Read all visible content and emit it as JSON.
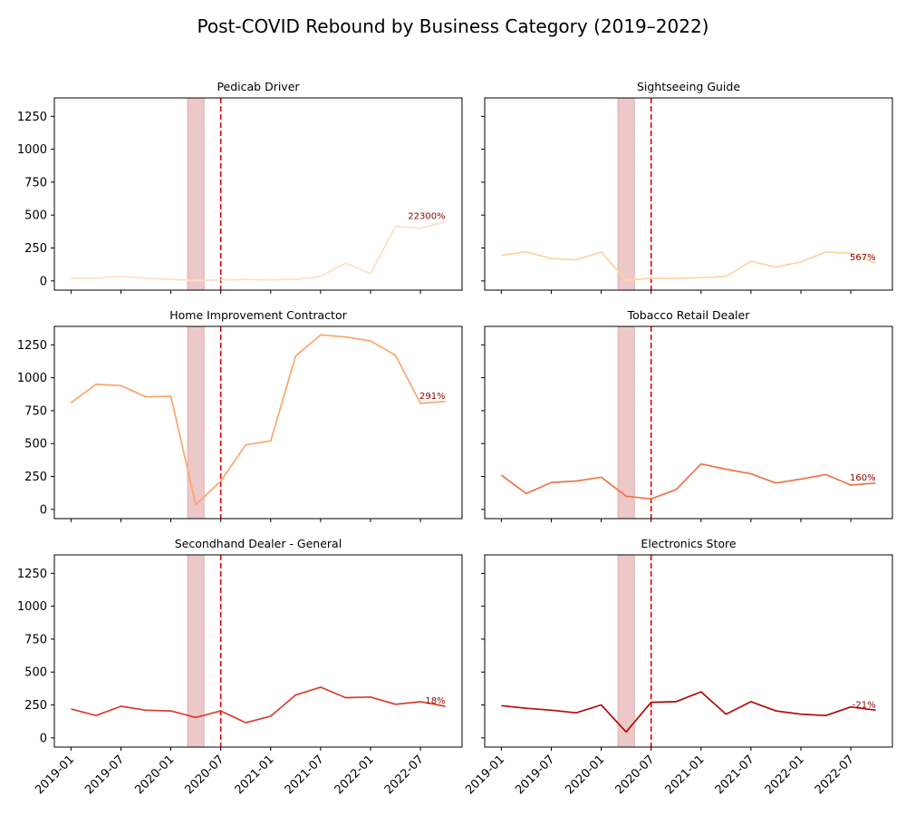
{
  "chart_data": {
    "type": "line",
    "title": "Post-COVID Rebound by Business Category (2019–2022)",
    "x_ticks": [
      "2019-01",
      "2019-07",
      "2020-01",
      "2020-07",
      "2021-01",
      "2021-07",
      "2022-01",
      "2022-07"
    ],
    "y_ticks": [
      0,
      250,
      500,
      750,
      1000,
      1250
    ],
    "ylim": [
      -70,
      1390
    ],
    "xlim": [
      "2018-11",
      "2022-12"
    ],
    "shared_y": true,
    "x": [
      "2019-01",
      "2019-04",
      "2019-07",
      "2019-10",
      "2020-01",
      "2020-04",
      "2020-07",
      "2020-10",
      "2021-01",
      "2021-04",
      "2021-07",
      "2021-10",
      "2022-01",
      "2022-04",
      "2022-07",
      "2022-10"
    ],
    "lockdown_span": [
      "2020-03",
      "2020-05"
    ],
    "reopen_line": "2020-07",
    "panels": [
      {
        "title": "Pedicab Driver",
        "color": "#fde0c5",
        "x": [
          "2019-01",
          "2019-04",
          "2019-07",
          "2019-10",
          "2020-01",
          "2020-04",
          "2020-07",
          "2020-10",
          "2021-01",
          "2021-04",
          "2021-07",
          "2021-10",
          "2022-01",
          "2022-04",
          "2022-07",
          "2022-10"
        ],
        "values": [
          20,
          20,
          35,
          20,
          12,
          2,
          8,
          10,
          8,
          12,
          35,
          135,
          55,
          415,
          400,
          450
        ],
        "annotation": "22300%"
      },
      {
        "title": "Sightseeing Guide",
        "color": "#fdd3a0",
        "x": [
          "2019-01",
          "2019-04",
          "2019-07",
          "2019-10",
          "2020-01",
          "2020-04",
          "2020-07",
          "2020-10",
          "2021-01",
          "2021-04",
          "2021-07",
          "2021-10",
          "2022-01",
          "2022-04",
          "2022-07",
          "2022-10"
        ],
        "values": [
          195,
          220,
          170,
          160,
          220,
          5,
          20,
          18,
          25,
          35,
          150,
          105,
          145,
          220,
          210,
          135
        ],
        "annotation": "567%"
      },
      {
        "title": "Home Improvement Contractor",
        "color": "#f9a66e",
        "x": [
          "2019-01",
          "2019-04",
          "2019-07",
          "2019-10",
          "2020-01",
          "2020-04",
          "2020-07",
          "2020-10",
          "2021-01",
          "2021-04",
          "2021-07",
          "2021-10",
          "2022-01",
          "2022-04",
          "2022-07",
          "2022-10"
        ],
        "values": [
          810,
          950,
          940,
          855,
          860,
          35,
          215,
          490,
          520,
          1165,
          1325,
          1310,
          1280,
          1170,
          805,
          820
        ],
        "annotation": "291%"
      },
      {
        "title": "Tobacco Retail Dealer",
        "color": "#ec7449",
        "x": [
          "2019-01",
          "2019-04",
          "2019-07",
          "2019-10",
          "2020-01",
          "2020-04",
          "2020-07",
          "2020-10",
          "2021-01",
          "2021-04",
          "2021-07",
          "2021-10",
          "2022-01",
          "2022-04",
          "2022-07",
          "2022-10"
        ],
        "values": [
          260,
          120,
          205,
          215,
          245,
          100,
          80,
          150,
          345,
          305,
          270,
          200,
          230,
          265,
          185,
          200
        ],
        "annotation": "160%"
      },
      {
        "title": "Secondhand Dealer - General",
        "color": "#d53e2a",
        "x": [
          "2019-01",
          "2019-04",
          "2019-07",
          "2019-10",
          "2020-01",
          "2020-04",
          "2020-07",
          "2020-10",
          "2021-01",
          "2021-04",
          "2021-07",
          "2021-10",
          "2022-01",
          "2022-04",
          "2022-07",
          "2022-10"
        ],
        "values": [
          220,
          170,
          240,
          210,
          205,
          155,
          205,
          115,
          165,
          325,
          385,
          305,
          310,
          255,
          275,
          240
        ],
        "annotation": "18%"
      },
      {
        "title": "Electronics Store",
        "color": "#b20a0a",
        "x": [
          "2019-01",
          "2019-04",
          "2019-07",
          "2019-10",
          "2020-01",
          "2020-04",
          "2020-07",
          "2020-10",
          "2021-01",
          "2021-04",
          "2021-07",
          "2021-10",
          "2022-01",
          "2022-04",
          "2022-07",
          "2022-10"
        ],
        "values": [
          245,
          225,
          210,
          190,
          250,
          45,
          270,
          275,
          350,
          180,
          275,
          205,
          180,
          170,
          235,
          210
        ],
        "annotation": "-21%"
      }
    ]
  }
}
